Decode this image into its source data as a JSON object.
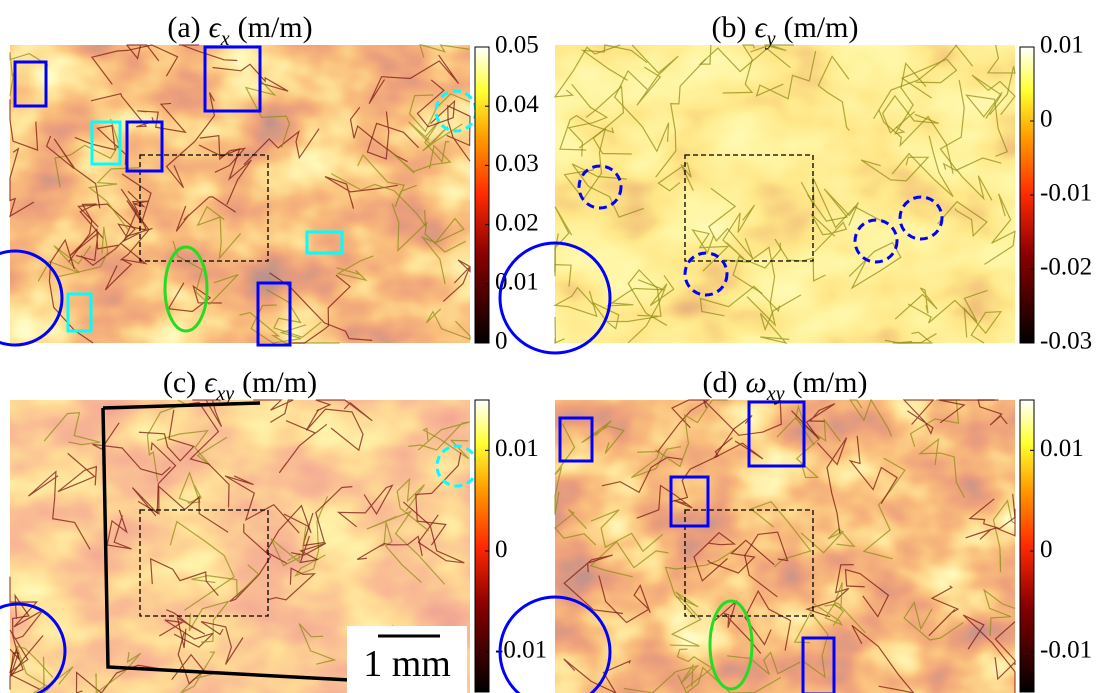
{
  "chart_data": [
    {
      "type": "heatmap",
      "title": {
        "panel": "(a)",
        "symbol": "ϵ",
        "subscript": "x",
        "unit": "(m/m)"
      },
      "clim": [
        0,
        0.05
      ],
      "cticks": [
        0,
        0.01,
        0.02,
        0.03,
        0.04,
        0.05
      ]
    },
    {
      "type": "heatmap",
      "title": {
        "panel": "(b)",
        "symbol": "ϵ",
        "subscript": "y",
        "unit": "(m/m)"
      },
      "clim": [
        -0.03,
        0.01
      ],
      "cticks": [
        -0.03,
        -0.02,
        -0.01,
        0,
        0.01
      ]
    },
    {
      "type": "heatmap",
      "title": {
        "panel": "(c)",
        "symbol": "ϵ",
        "subscript": "xy",
        "unit": "(m/m)"
      },
      "clim": [
        -0.014,
        0.015
      ],
      "cticks": [
        -0.01,
        0,
        0.01
      ],
      "scale_bar": "1 mm"
    },
    {
      "type": "heatmap",
      "title": {
        "panel": "(d)",
        "symbol": "ω",
        "subscript": "xy",
        "unit": "(m/m)"
      },
      "clim": [
        -0.014,
        0.015
      ],
      "cticks": [
        -0.01,
        0,
        0.01
      ]
    }
  ]
}
